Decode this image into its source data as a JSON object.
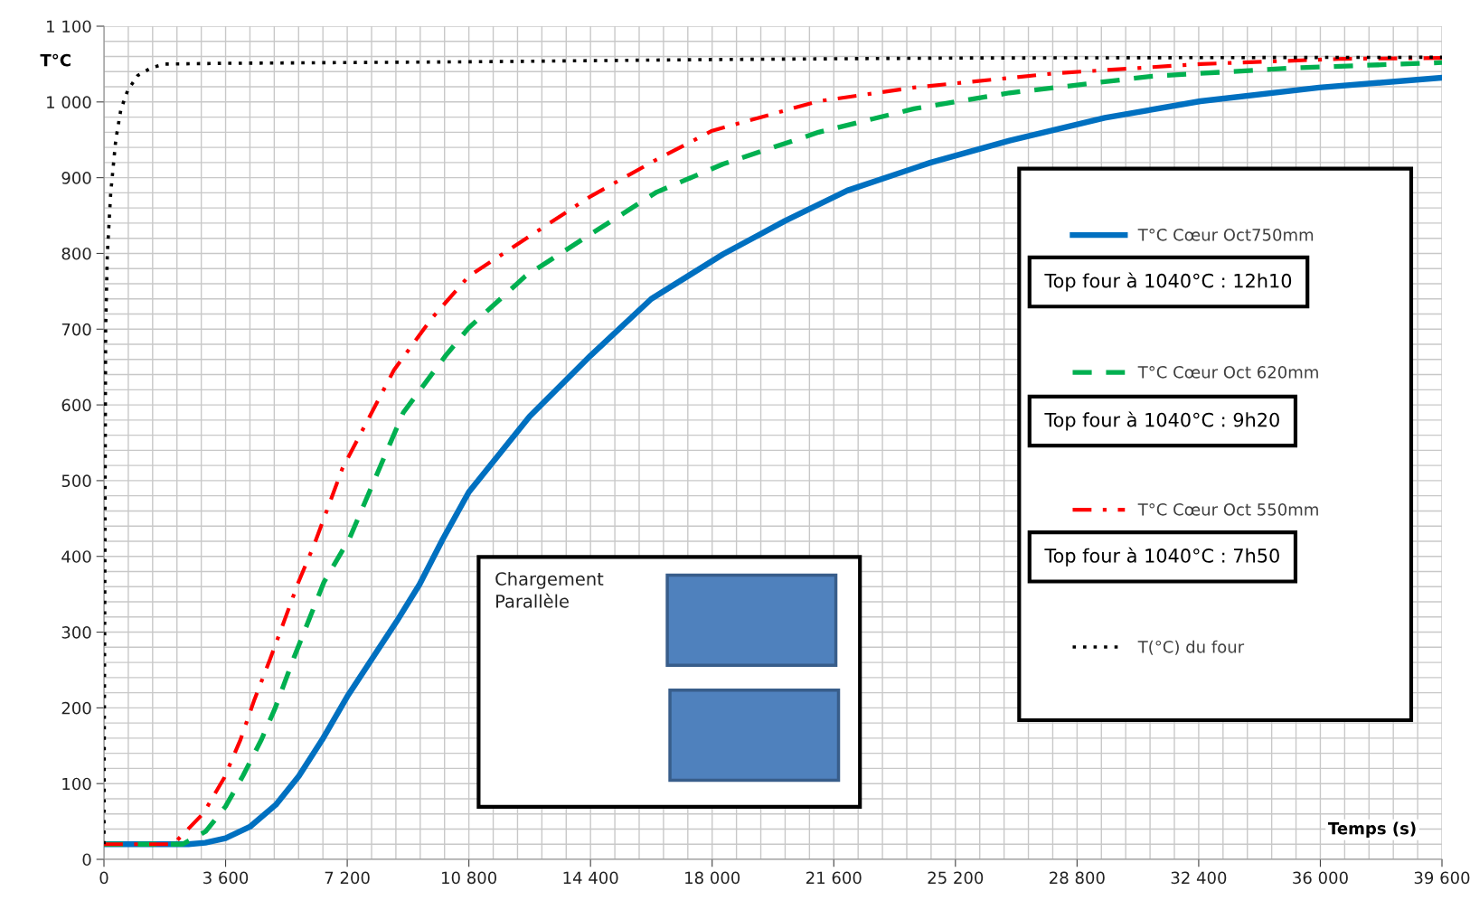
{
  "chart_data": {
    "type": "line",
    "xlabel": "Temps (s)",
    "ylabel": "T°C",
    "xlim": [
      0,
      39600
    ],
    "ylim": [
      0,
      1100
    ],
    "xticks": [
      0,
      {
        "value": 3600,
        "label": "3 600"
      },
      {
        "value": 7200,
        "label": "7 200"
      },
      {
        "value": 10800,
        "label": "10 800"
      },
      {
        "value": 14400,
        "label": "14 400"
      },
      {
        "value": 18000,
        "label": "18 000"
      },
      {
        "value": 21600,
        "label": "21 600"
      },
      {
        "value": 25200,
        "label": "25 200"
      },
      {
        "value": 28800,
        "label": "28 800"
      },
      {
        "value": 32400,
        "label": "32 400"
      },
      {
        "value": 36000,
        "label": "36 000"
      },
      {
        "value": 39600,
        "label": "39 600"
      }
    ],
    "yticks": [
      0,
      100,
      200,
      300,
      400,
      500,
      600,
      700,
      800,
      900,
      {
        "value": 1000,
        "label": "1 000"
      },
      {
        "value": 1100,
        "label": "1 100"
      }
    ],
    "grid": true,
    "legend": "right",
    "marker": "none",
    "series": [
      {
        "name": "T°C Cœur Oct750mm",
        "color": "#0070c0",
        "line_style": "solid",
        "x": [
          0,
          2500,
          3000,
          3600,
          4320,
          5085,
          5770,
          6460,
          7200,
          7820,
          8660,
          9340,
          10030,
          10800,
          12600,
          14400,
          16200,
          18325,
          20160,
          22000,
          24470,
          26800,
          29620,
          32450,
          35970,
          39600
        ],
        "values": [
          20,
          20,
          22,
          28,
          43,
          72,
          110,
          158,
          215,
          257,
          314,
          363,
          423,
          485,
          585,
          665,
          740,
          799,
          843,
          883,
          920,
          949,
          979,
          1001,
          1019,
          1032
        ]
      },
      {
        "name": "T°C Cœur Oct 620mm",
        "color": "#00b050",
        "line_style": "dashed",
        "x": [
          0,
          2330,
          3015,
          3600,
          4111,
          4660,
          5070,
          5620,
          6100,
          6510,
          7260,
          8861,
          10111,
          10800,
          12472,
          14390,
          16360,
          18325,
          21150,
          23970,
          26800,
          31030,
          35270,
          39600
        ],
        "values": [
          20,
          20,
          37,
          70,
          110,
          158,
          200,
          266,
          320,
          366,
          423,
          590,
          665,
          702,
          770,
          825,
          881,
          918,
          960,
          991,
          1012,
          1034,
          1045,
          1052
        ]
      },
      {
        "name": "T°C Cœur Oct 550mm",
        "color": "#ff0000",
        "line_style": "dashdot",
        "x": [
          0,
          2055,
          2946,
          3563,
          4040,
          4454,
          4906,
          5345,
          5756,
          6235,
          7056,
          8583,
          9694,
          10800,
          12472,
          14390,
          16360,
          18000,
          21150,
          23970,
          28200,
          32450,
          36680,
          39600
        ],
        "values": [
          20,
          20,
          61,
          108,
          158,
          211,
          263,
          316,
          366,
          417,
          516,
          646,
          714,
          770,
          819,
          875,
          924,
          962,
          1001,
          1019,
          1038,
          1050,
          1057,
          1058
        ]
      },
      {
        "name": "T(°C) du four",
        "color": "#000000",
        "line_style": "dotted",
        "x": [
          0,
          50,
          100,
          200,
          350,
          500,
          700,
          1000,
          1400,
          1800,
          3600,
          10800,
          18000,
          25200,
          39600
        ],
        "values": [
          20,
          700,
          800,
          880,
          950,
          990,
          1015,
          1035,
          1045,
          1050,
          1051,
          1053,
          1056,
          1058,
          1059
        ]
      }
    ],
    "annotations": [
      "Top four à 1040°C : 12h10",
      "Top four à 1040°C : 9h20",
      "Top four à 1040°C : 7h50",
      "Chargement\nParallèle"
    ]
  }
}
